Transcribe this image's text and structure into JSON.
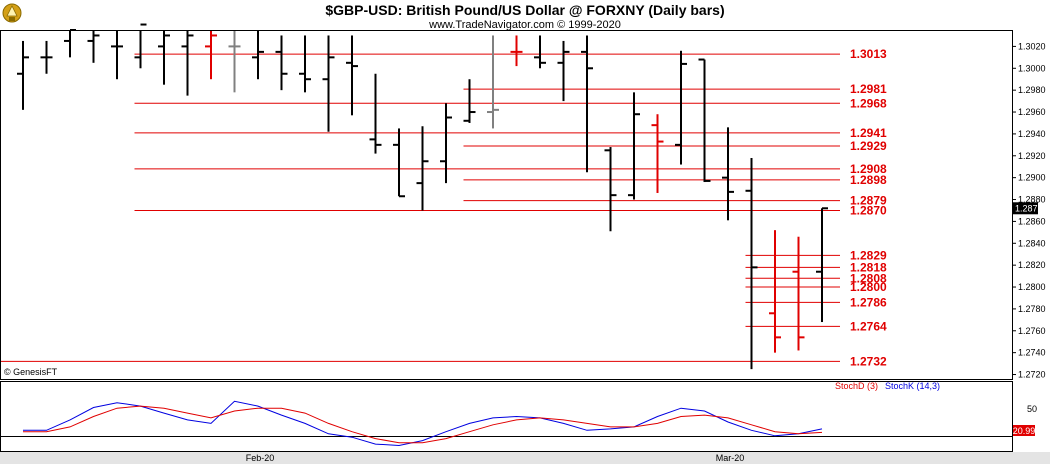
{
  "chart_data": [
    {
      "type": "ohlc",
      "title": "$GBP-USD:  British Pound/US Dollar @ FORXNY  (Daily bars)",
      "subtitle": "www.TradeNavigator.com © 1999-2020",
      "copyright": "© GenesisFT",
      "y_ticks": [
        "1.3020",
        "1.3000",
        "1.2980",
        "1.2960",
        "1.2940",
        "1.2920",
        "1.2900",
        "1.2880",
        "1.2860",
        "1.2840",
        "1.2820",
        "1.2800",
        "1.2780",
        "1.2760",
        "1.2740",
        "1.2720"
      ],
      "ylim": [
        1.2715,
        1.3035
      ],
      "x_tick_labels": [
        "Feb-20",
        "Mar-20"
      ],
      "last_price": "1.2872",
      "bars": [
        {
          "o": 1.2995,
          "h": 1.3025,
          "l": 1.2962,
          "c": 1.301,
          "color": "black"
        },
        {
          "o": 1.301,
          "h": 1.3025,
          "l": 1.2995,
          "c": 1.301,
          "color": "black"
        },
        {
          "o": 1.3025,
          "h": 1.306,
          "l": 1.301,
          "c": 1.3035,
          "color": "black"
        },
        {
          "o": 1.3025,
          "h": 1.306,
          "l": 1.3005,
          "c": 1.303,
          "color": "black"
        },
        {
          "o": 1.302,
          "h": 1.305,
          "l": 1.299,
          "c": 1.302,
          "color": "black"
        },
        {
          "o": 1.301,
          "h": 1.306,
          "l": 1.3,
          "c": 1.304,
          "color": "black"
        },
        {
          "o": 1.302,
          "h": 1.306,
          "l": 1.2985,
          "c": 1.303,
          "color": "black"
        },
        {
          "o": 1.302,
          "h": 1.306,
          "l": 1.2975,
          "c": 1.303,
          "color": "black"
        },
        {
          "o": 1.302,
          "h": 1.3055,
          "l": 1.299,
          "c": 1.303,
          "color": "red"
        },
        {
          "o": 1.302,
          "h": 1.305,
          "l": 1.2978,
          "c": 1.302,
          "color": "gray"
        },
        {
          "o": 1.301,
          "h": 1.3035,
          "l": 1.299,
          "c": 1.3015,
          "color": "black"
        },
        {
          "o": 1.3015,
          "h": 1.303,
          "l": 1.298,
          "c": 1.2995,
          "color": "black"
        },
        {
          "o": 1.2995,
          "h": 1.303,
          "l": 1.2978,
          "c": 1.299,
          "color": "black"
        },
        {
          "o": 1.299,
          "h": 1.303,
          "l": 1.2942,
          "c": 1.301,
          "color": "black"
        },
        {
          "o": 1.3005,
          "h": 1.303,
          "l": 1.2957,
          "c": 1.3002,
          "color": "black"
        },
        {
          "o": 1.2935,
          "h": 1.2995,
          "l": 1.2922,
          "c": 1.293,
          "color": "black"
        },
        {
          "o": 1.293,
          "h": 1.2945,
          "l": 1.2883,
          "c": 1.2883,
          "color": "black"
        },
        {
          "o": 1.2895,
          "h": 1.2947,
          "l": 1.287,
          "c": 1.2915,
          "color": "black"
        },
        {
          "o": 1.2915,
          "h": 1.2968,
          "l": 1.2895,
          "c": 1.2955,
          "color": "black"
        },
        {
          "o": 1.2952,
          "h": 1.299,
          "l": 1.295,
          "c": 1.296,
          "color": "black"
        },
        {
          "o": 1.296,
          "h": 1.303,
          "l": 1.2945,
          "c": 1.2962,
          "color": "gray"
        },
        {
          "o": 1.3015,
          "h": 1.303,
          "l": 1.3002,
          "c": 1.3015,
          "color": "red"
        },
        {
          "o": 1.301,
          "h": 1.303,
          "l": 1.3,
          "c": 1.3005,
          "color": "black"
        },
        {
          "o": 1.3005,
          "h": 1.3025,
          "l": 1.297,
          "c": 1.3015,
          "color": "black"
        },
        {
          "o": 1.3015,
          "h": 1.303,
          "l": 1.2905,
          "c": 1.3,
          "color": "black"
        },
        {
          "o": 1.2925,
          "h": 1.2928,
          "l": 1.2851,
          "c": 1.2884,
          "color": "black"
        },
        {
          "o": 1.2884,
          "h": 1.2978,
          "l": 1.288,
          "c": 1.2958,
          "color": "black"
        },
        {
          "o": 1.2948,
          "h": 1.2958,
          "l": 1.2886,
          "c": 1.2933,
          "color": "red"
        },
        {
          "o": 1.293,
          "h": 1.3016,
          "l": 1.2912,
          "c": 1.3004,
          "color": "black"
        },
        {
          "o": 1.3008,
          "h": 1.3008,
          "l": 1.2896,
          "c": 1.2897,
          "color": "black"
        },
        {
          "o": 1.29,
          "h": 1.2946,
          "l": 1.2861,
          "c": 1.2887,
          "color": "black"
        },
        {
          "o": 1.2888,
          "h": 1.2918,
          "l": 1.2725,
          "c": 1.2818,
          "color": "black"
        },
        {
          "o": 1.2776,
          "h": 1.2852,
          "l": 1.274,
          "c": 1.2754,
          "color": "red"
        },
        {
          "o": 1.2814,
          "h": 1.2846,
          "l": 1.2742,
          "c": 1.2754,
          "color": "red"
        },
        {
          "o": 1.2814,
          "h": 1.2872,
          "l": 1.2768,
          "c": 1.2872,
          "color": "black"
        }
      ],
      "levels": [
        {
          "value": 1.3013,
          "label": "1.3013",
          "start": 5
        },
        {
          "value": 1.2981,
          "label": "1.2981",
          "start": 19
        },
        {
          "value": 1.2968,
          "label": "1.2968",
          "start": 5
        },
        {
          "value": 1.2941,
          "label": "1.2941",
          "start": 5
        },
        {
          "value": 1.2929,
          "label": "1.2929",
          "start": 19
        },
        {
          "value": 1.2908,
          "label": "1.2908",
          "start": 5
        },
        {
          "value": 1.2898,
          "label": "1.2898",
          "start": 19
        },
        {
          "value": 1.2879,
          "label": "1.2879",
          "start": 19
        },
        {
          "value": 1.287,
          "label": "1.2870",
          "start": 5
        },
        {
          "value": 1.2829,
          "label": "1.2829",
          "start": 31
        },
        {
          "value": 1.2818,
          "label": "1.2818",
          "start": 31
        },
        {
          "value": 1.2808,
          "label": "1.2808",
          "start": 31
        },
        {
          "value": 1.28,
          "label": "1.2800",
          "start": 31
        },
        {
          "value": 1.2786,
          "label": "1.2786",
          "start": 31
        },
        {
          "value": 1.2764,
          "label": "1.2764",
          "start": 31
        },
        {
          "value": 1.2732,
          "label": "1.2732",
          "start": 0
        }
      ]
    },
    {
      "type": "line",
      "legend": [
        "StochD (3)",
        "StochK (14,3)"
      ],
      "y_ticks": [
        "50"
      ],
      "last_values": [
        "20.99"
      ],
      "ylim": [
        0,
        100
      ],
      "series": [
        {
          "name": "StochK (14,3)",
          "color": "#0000e0",
          "values": [
            30,
            30,
            45,
            63,
            70,
            65,
            55,
            45,
            40,
            72,
            65,
            52,
            40,
            25,
            20,
            10,
            8,
            15,
            28,
            40,
            48,
            50,
            48,
            40,
            30,
            32,
            35,
            50,
            62,
            58,
            42,
            30,
            22,
            25,
            32
          ]
        },
        {
          "name": "StochD (3)",
          "color": "#e00000",
          "values": [
            28,
            28,
            35,
            50,
            62,
            65,
            62,
            55,
            48,
            58,
            62,
            62,
            55,
            40,
            28,
            18,
            12,
            12,
            18,
            28,
            38,
            45,
            48,
            45,
            40,
            35,
            35,
            40,
            50,
            52,
            48,
            38,
            28,
            25,
            27
          ]
        }
      ],
      "x_tick_labels": [
        "Feb-20",
        "Mar-20"
      ]
    }
  ]
}
